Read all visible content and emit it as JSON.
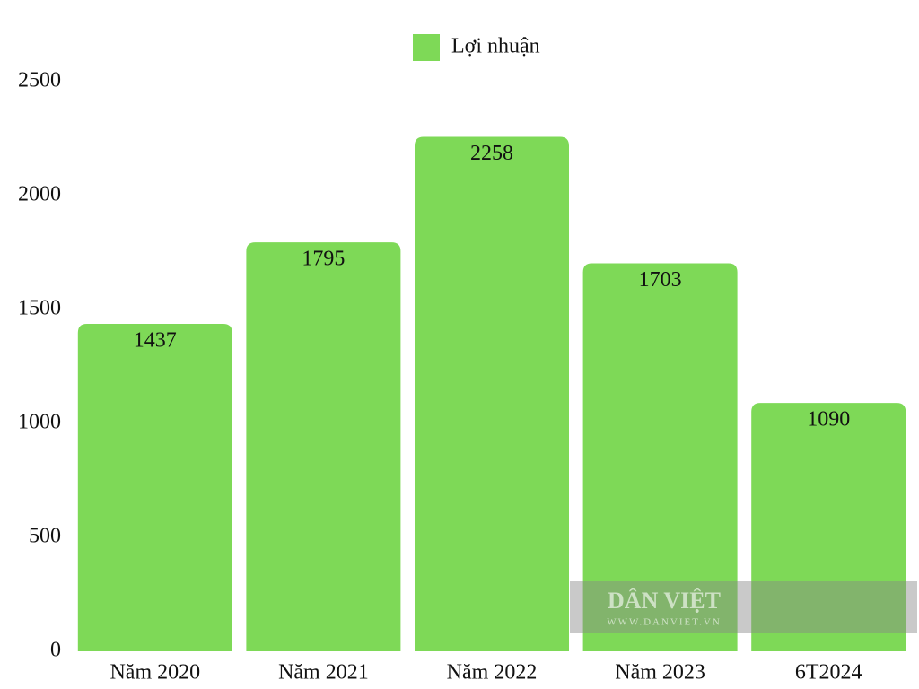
{
  "chart_data": {
    "type": "bar",
    "categories": [
      "Năm 2020",
      "Năm 2021",
      "Năm 2022",
      "Năm 2023",
      "6T2024"
    ],
    "series": [
      {
        "name": "Lợi nhuận",
        "color": "#7ed957",
        "values": [
          1437,
          1795,
          2258,
          1703,
          1090
        ]
      }
    ],
    "ylim": [
      0,
      2500
    ],
    "yticks": [
      0,
      500,
      1000,
      1500,
      2000,
      2500
    ],
    "grid": false,
    "legend": "top",
    "watermark": {
      "title": "DÂN VIỆT",
      "url": "WWW.DANVIET.VN"
    }
  }
}
